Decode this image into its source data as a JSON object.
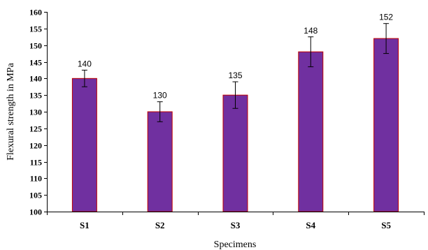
{
  "chart_data": {
    "type": "bar",
    "categories": [
      "S1",
      "S2",
      "S3",
      "S4",
      "S5"
    ],
    "values": [
      140,
      130,
      135,
      148,
      152
    ],
    "error_low": [
      137.5,
      127,
      131,
      143.5,
      147.5
    ],
    "error_high": [
      142.5,
      133,
      139,
      152.5,
      156.5
    ],
    "data_labels": [
      "140",
      "130",
      "135",
      "148",
      "152"
    ],
    "title": "",
    "xlabel": "Specimens",
    "ylabel": "Flexural strength in MPa",
    "ylim": [
      100,
      160
    ],
    "yticks": [
      100,
      105,
      110,
      115,
      120,
      125,
      130,
      135,
      140,
      145,
      150,
      155,
      160
    ],
    "ytick_labels": [
      "100",
      "105",
      "110",
      "115",
      "120",
      "125",
      "130",
      "135",
      "140",
      "145",
      "150",
      "155",
      "160"
    ],
    "grid": false,
    "legend": "none",
    "colors": {
      "bar_fill": "#7030a0",
      "bar_edge": "#c00000",
      "axis": "#000000"
    }
  }
}
